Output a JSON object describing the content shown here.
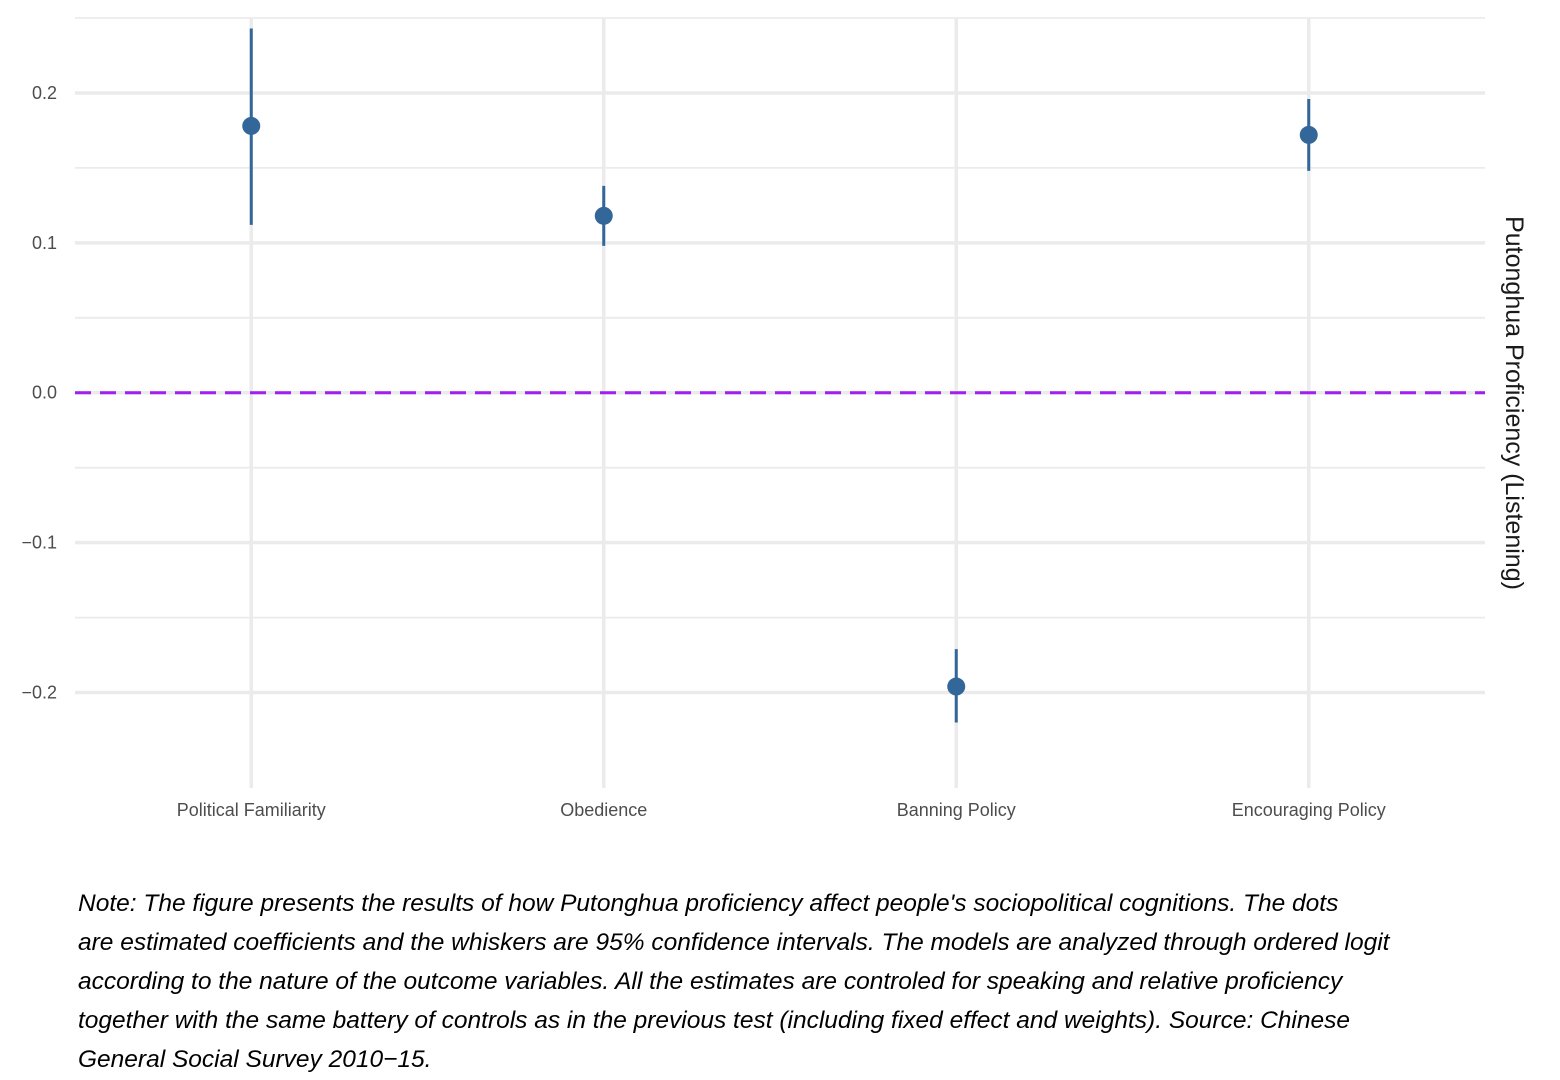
{
  "chart_data": {
    "type": "scatter",
    "subtype": "coefficient plot with error bars",
    "categories": [
      "Political Familiarity",
      "Obedience",
      "Banning Policy",
      "Encouraging Policy"
    ],
    "estimates": [
      0.178,
      0.118,
      -0.196,
      0.172
    ],
    "ci_lower": [
      0.112,
      0.098,
      -0.22,
      0.148
    ],
    "ci_upper": [
      0.243,
      0.138,
      -0.171,
      0.196
    ],
    "ylim": [
      -0.245,
      0.25
    ],
    "yticks": [
      -0.2,
      -0.1,
      0.0,
      0.1,
      0.2
    ],
    "ytick_labels": [
      "−0.2",
      "−0.1",
      "0.0",
      "0.1",
      "0.2"
    ],
    "side_label": "Putonghua Proficiency (Listening)",
    "reference_line": {
      "y": 0,
      "style": "dashed",
      "color": "#a020f0"
    },
    "colors": {
      "point": "#336699",
      "grid": "#ebebeb"
    },
    "grid": true
  },
  "note": {
    "lines": [
      "Note: The figure presents the results of how Putonghua proficiency affect people's sociopolitical cognitions. The dots",
      "are estimated coefficients and the whiskers are 95% confidence intervals. The models are analyzed through ordered logit",
      "according to the nature of the outcome variables. All the estimates are controled for speaking and relative proficiency",
      "together with the same battery of controls as in the previous test (including fixed effect and weights). Source: Chinese",
      "General Social Survey 2010−15."
    ]
  }
}
